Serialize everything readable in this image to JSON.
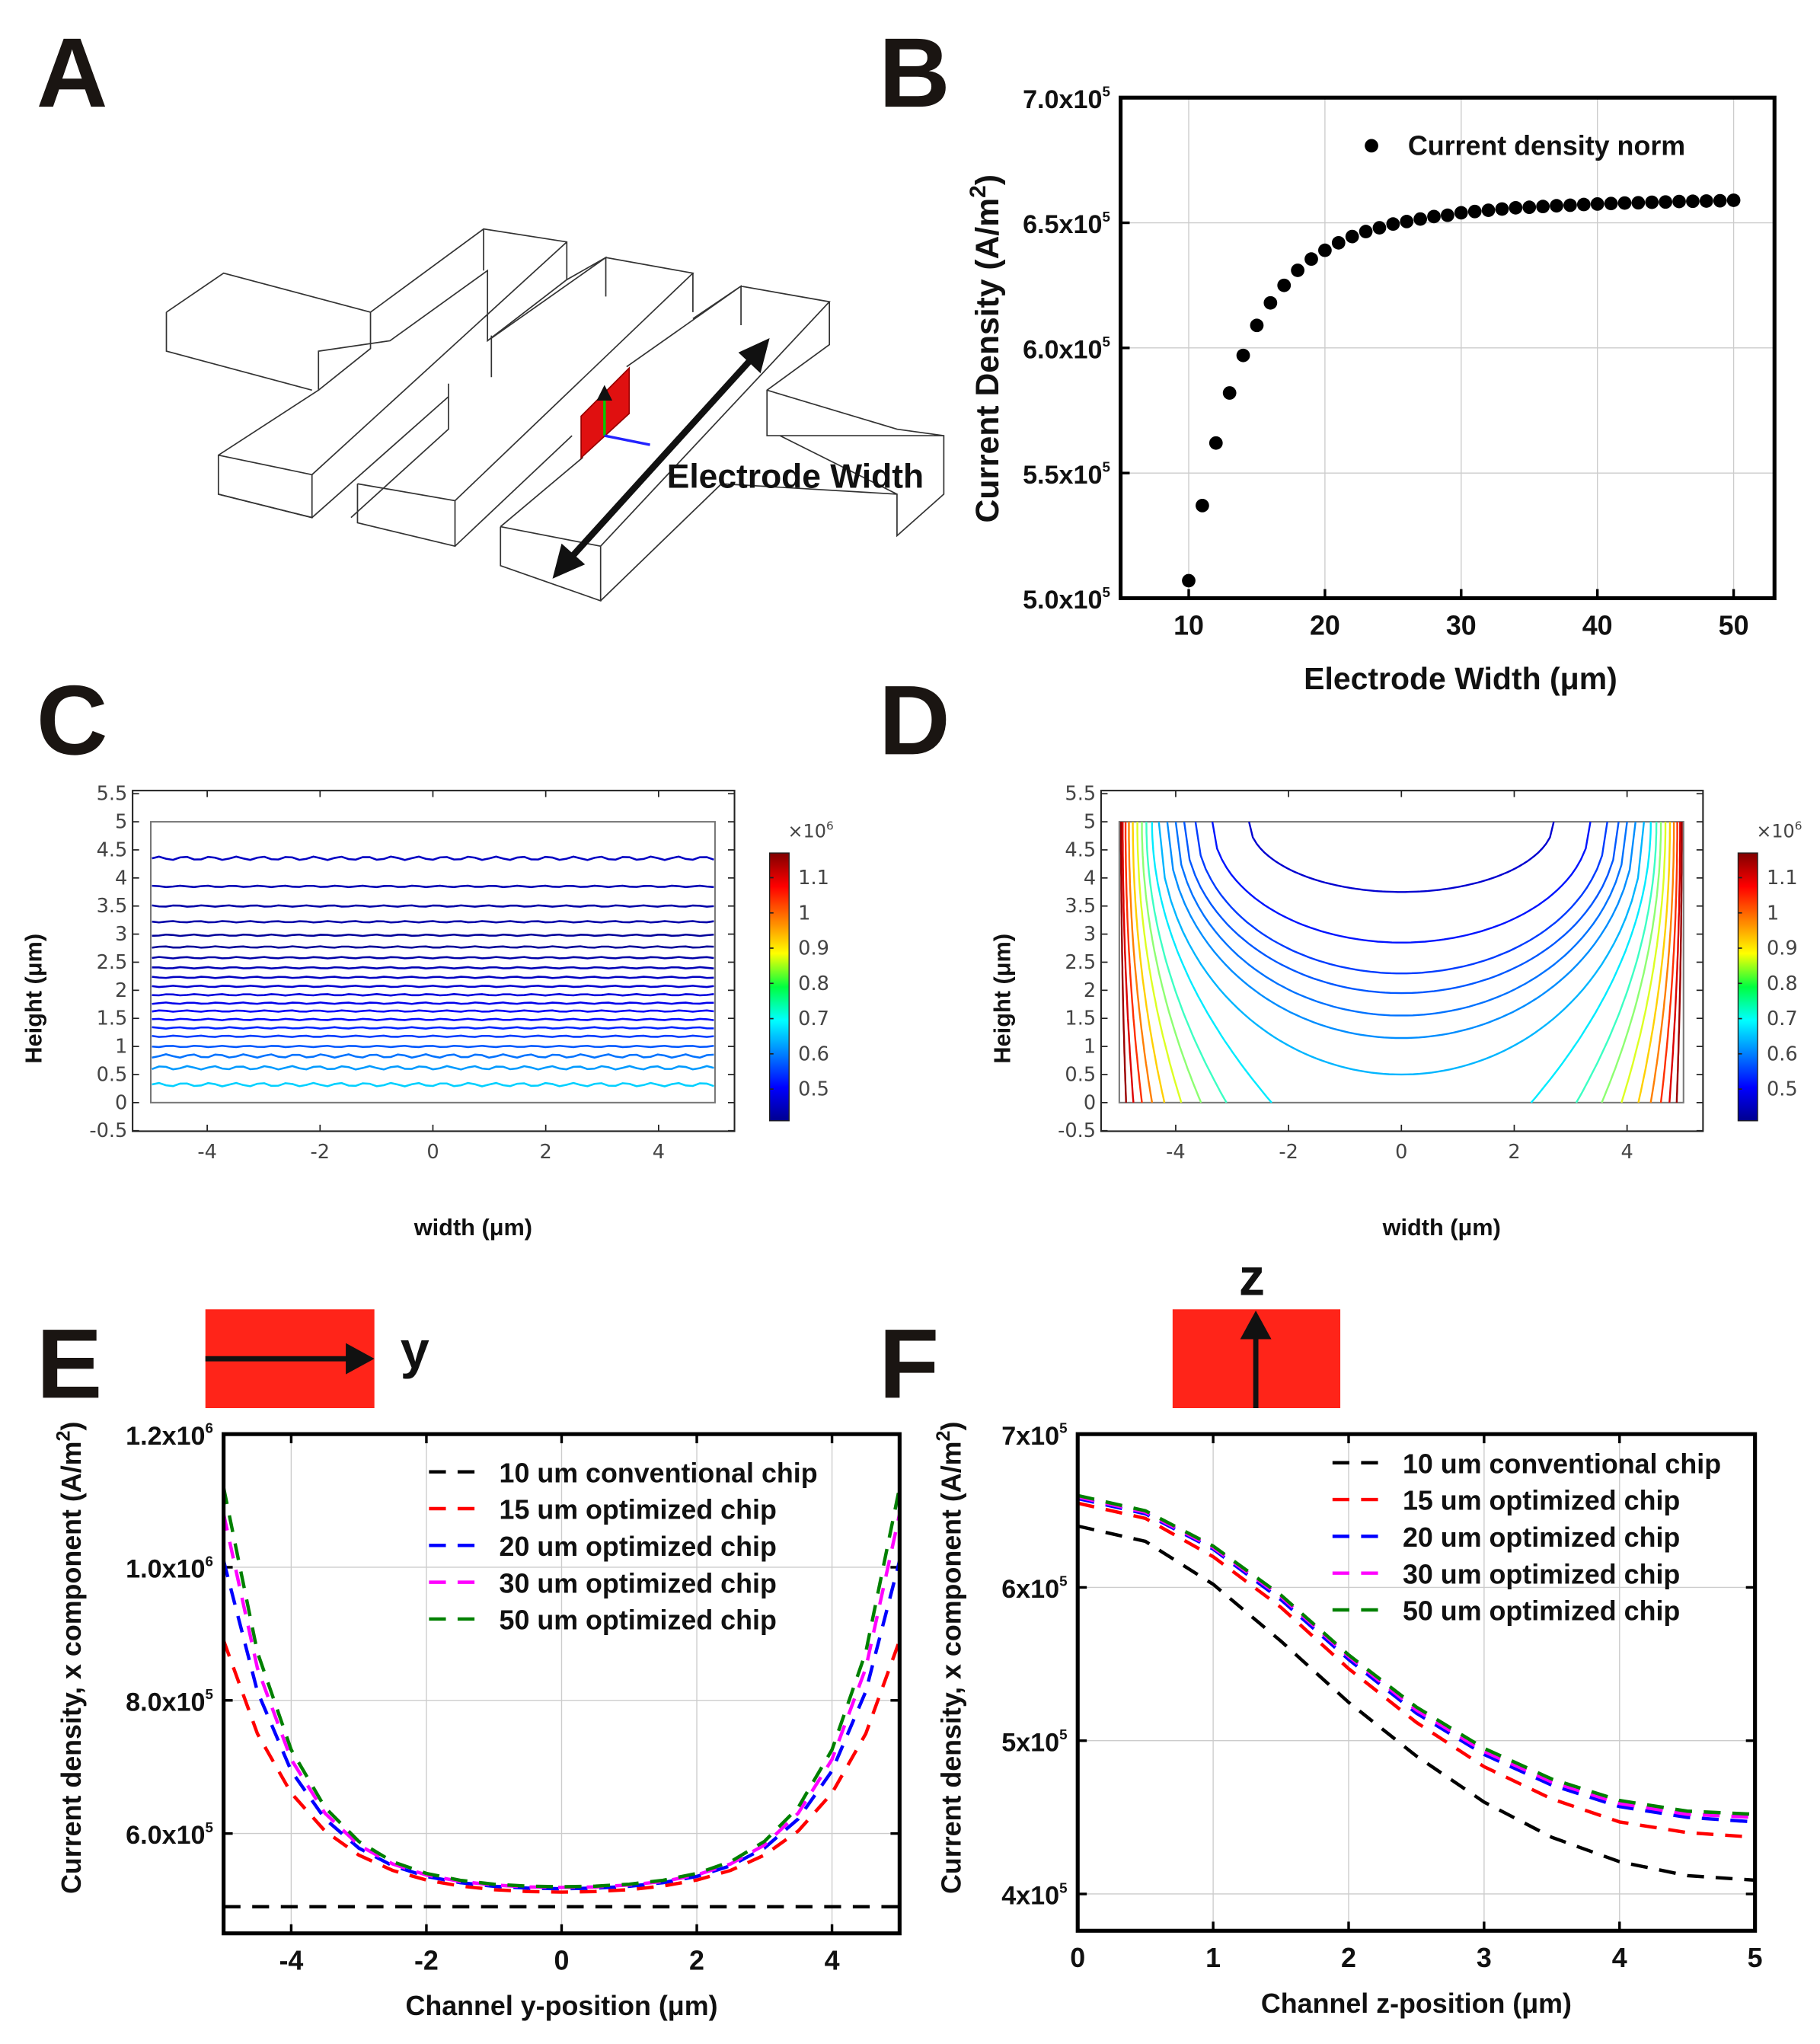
{
  "panels": {
    "A": {
      "letter": "A",
      "annotation": "Electrode Width"
    },
    "B": {
      "letter": "B"
    },
    "C": {
      "letter": "C"
    },
    "D": {
      "letter": "D"
    },
    "E": {
      "letter": "E",
      "axis_symbol": "y"
    },
    "F": {
      "letter": "F",
      "axis_symbol": "z"
    }
  },
  "colors": {
    "red_block": "#ff2419",
    "black": "#000000",
    "s10": "#000000",
    "s15": "#ff0000",
    "s20": "#0000ff",
    "s30": "#ff00ff",
    "s50": "#008000"
  },
  "chart_data": [
    {
      "id": "B",
      "type": "scatter",
      "title": "",
      "xlabel": "Electrode Width (μm)",
      "ylabel_pre": "Current Density (A/m",
      "ylabel_sup": "2",
      "ylabel_post": ")",
      "xlim": [
        5,
        53
      ],
      "ylim": [
        5.0,
        7.0
      ],
      "y_scale_factor": 100000,
      "xticks": [
        10,
        20,
        30,
        40,
        50
      ],
      "yticks": [
        {
          "v": 5.0,
          "base": "5.0x10",
          "exp": "5"
        },
        {
          "v": 5.5,
          "base": "5.5x10",
          "exp": "5"
        },
        {
          "v": 6.0,
          "base": "6.0x10",
          "exp": "5"
        },
        {
          "v": 6.5,
          "base": "6.5x10",
          "exp": "5"
        },
        {
          "v": 7.0,
          "base": "7.0x10",
          "exp": "5"
        }
      ],
      "grid": true,
      "legend_position": "top-right",
      "series": [
        {
          "name": "Current density norm",
          "x": [
            10,
            11,
            12,
            13,
            14,
            15,
            16,
            17,
            18,
            19,
            20,
            21,
            22,
            23,
            24,
            25,
            26,
            27,
            28,
            29,
            30,
            31,
            32,
            33,
            34,
            35,
            36,
            37,
            38,
            39,
            40,
            41,
            42,
            43,
            44,
            45,
            46,
            47,
            48,
            49,
            50
          ],
          "y": [
            5.07,
            5.37,
            5.62,
            5.82,
            5.97,
            6.09,
            6.18,
            6.25,
            6.31,
            6.355,
            6.39,
            6.42,
            6.445,
            6.465,
            6.48,
            6.495,
            6.505,
            6.515,
            6.525,
            6.53,
            6.54,
            6.545,
            6.55,
            6.555,
            6.56,
            6.562,
            6.565,
            6.568,
            6.57,
            6.573,
            6.575,
            6.577,
            6.579,
            6.58,
            6.582,
            6.583,
            6.585,
            6.586,
            6.587,
            6.588,
            6.59
          ]
        }
      ]
    },
    {
      "id": "C",
      "type": "contour",
      "xlabel": "width (μm)",
      "ylabel": "Height (μm)",
      "xlim": [
        -5.3,
        5.3
      ],
      "ylim": [
        -0.5,
        5.5
      ],
      "xticks": [
        "-4",
        "-2",
        "0",
        "2",
        "4"
      ],
      "xtick_values": [
        -4,
        -2,
        0,
        2,
        4
      ],
      "yticks": [
        "5.5",
        "5",
        "4.5",
        "4",
        "3.5",
        "3",
        "2.5",
        "2",
        "1.5",
        "1",
        "0.5",
        "0",
        "-0.5"
      ],
      "ytick_values": [
        5.5,
        5,
        4.5,
        4,
        3.5,
        3,
        2.5,
        2,
        1.5,
        1,
        0.5,
        0,
        -0.5
      ],
      "colorbar": {
        "exponent_label": "×10",
        "exponent": "6",
        "ticks": [
          "1.1",
          "1",
          "0.9",
          "0.8",
          "0.7",
          "0.6",
          "0.5"
        ],
        "tick_values": [
          1.1,
          1.0,
          0.9,
          0.8,
          0.7,
          0.6,
          0.5
        ],
        "range": [
          0.41,
          1.17
        ]
      },
      "contour_heights": [
        4.35,
        3.85,
        3.5,
        3.22,
        2.98,
        2.77,
        2.58,
        2.4,
        2.23,
        2.07,
        1.92,
        1.77,
        1.63,
        1.48,
        1.33,
        1.18,
        1.0,
        0.83,
        0.62,
        0.32
      ],
      "contour_values": [
        0.46,
        0.45,
        0.44,
        0.44,
        0.43,
        0.43,
        0.44,
        0.45,
        0.46,
        0.47,
        0.48,
        0.49,
        0.5,
        0.51,
        0.53,
        0.55,
        0.57,
        0.59,
        0.62,
        0.66
      ]
    },
    {
      "id": "D",
      "type": "contour",
      "xlabel": "width (μm)",
      "ylabel": "Height (μm)",
      "xlim": [
        -5.3,
        5.3
      ],
      "ylim": [
        -0.5,
        5.5
      ],
      "xticks": [
        "-4",
        "-2",
        "0",
        "2",
        "4"
      ],
      "xtick_values": [
        -4,
        -2,
        0,
        2,
        4
      ],
      "yticks": [
        "5.5",
        "5",
        "4.5",
        "4",
        "3.5",
        "3",
        "2.5",
        "2",
        "1.5",
        "1",
        "0.5",
        "0",
        "-0.5"
      ],
      "ytick_values": [
        5.5,
        5,
        4.5,
        4,
        3.5,
        3,
        2.5,
        2,
        1.5,
        1,
        0.5,
        0,
        -0.5
      ],
      "colorbar": {
        "exponent_label": "×10",
        "exponent": "6",
        "ticks": [
          "1.1",
          "1",
          "0.9",
          "0.8",
          "0.7",
          "0.6",
          "0.5"
        ],
        "tick_values": [
          1.1,
          1.0,
          0.9,
          0.8,
          0.7,
          0.6,
          0.5
        ],
        "range": [
          0.41,
          1.17
        ]
      },
      "center_contours": [
        {
          "z_min": 3.75,
          "x_end": 2.7,
          "value": 0.47
        },
        {
          "z_min": 2.85,
          "x_end": 3.35,
          "value": 0.52
        },
        {
          "z_min": 2.3,
          "x_end": 3.65,
          "value": 0.55
        },
        {
          "z_min": 1.95,
          "x_end": 3.85,
          "value": 0.57
        },
        {
          "z_min": 1.55,
          "x_end": 4.0,
          "value": 0.59
        },
        {
          "z_min": 1.15,
          "x_end": 4.15,
          "value": 0.61
        },
        {
          "z_min": 0.5,
          "x_end": 4.3,
          "value": 0.64
        }
      ],
      "edge_contours": [
        {
          "x_bottom": 2.3,
          "x_top": 4.42,
          "value": 0.68
        },
        {
          "x_bottom": 3.1,
          "x_top": 4.52,
          "value": 0.74
        },
        {
          "x_bottom": 3.55,
          "x_top": 4.6,
          "value": 0.8
        },
        {
          "x_bottom": 3.9,
          "x_top": 4.68,
          "value": 0.86
        },
        {
          "x_bottom": 4.2,
          "x_top": 4.76,
          "value": 0.92
        },
        {
          "x_bottom": 4.42,
          "x_top": 4.83,
          "value": 0.98
        },
        {
          "x_bottom": 4.6,
          "x_top": 4.89,
          "value": 1.04
        },
        {
          "x_bottom": 4.75,
          "x_top": 4.94,
          "value": 1.1
        },
        {
          "x_bottom": 4.88,
          "x_top": 4.97,
          "value": 1.15
        }
      ]
    },
    {
      "id": "E",
      "type": "line",
      "xlabel": "Channel y-position (μm)",
      "ylabel_pre": "Current density, x component (A/m",
      "ylabel_sup": "2",
      "ylabel_post": ")",
      "xlim": [
        -5,
        5
      ],
      "ylim": [
        4.5,
        12.0
      ],
      "y_scale_factor": 100000,
      "xticks": [
        -4,
        -2,
        0,
        2,
        4
      ],
      "yticks": [
        {
          "v": 6.0,
          "base": "6.0x10",
          "exp": "5"
        },
        {
          "v": 8.0,
          "base": "8.0x10",
          "exp": "5"
        },
        {
          "v": 10.0,
          "base": "1.0x10",
          "exp": "6"
        },
        {
          "v": 12.0,
          "base": "1.2x10",
          "exp": "6"
        }
      ],
      "grid": true,
      "legend_position": "top-right",
      "x": [
        -5,
        -4.5,
        -4,
        -3.5,
        -3,
        -2.5,
        -2,
        -1.5,
        -1,
        -0.5,
        0,
        0.5,
        1,
        1.5,
        2,
        2.5,
        3,
        3.5,
        4,
        4.5,
        5
      ],
      "series": [
        {
          "name": "10 um  conventional chip",
          "color_key": "s10",
          "values": [
            4.9,
            4.9,
            4.9,
            4.9,
            4.9,
            4.9,
            4.9,
            4.9,
            4.9,
            4.9,
            4.9,
            4.9,
            4.9,
            4.9,
            4.9,
            4.9,
            4.9,
            4.9,
            4.9,
            4.9,
            4.9
          ]
        },
        {
          "name": "15 um optimized chip",
          "color_key": "s15",
          "values": [
            8.9,
            7.5,
            6.607,
            6.038,
            5.676,
            5.446,
            5.301,
            5.211,
            5.157,
            5.129,
            5.12,
            5.129,
            5.157,
            5.211,
            5.301,
            5.446,
            5.676,
            6.038,
            6.607,
            7.5,
            8.9
          ]
        },
        {
          "name": "20 um optimized chip",
          "color_key": "s20",
          "values": [
            10.1,
            8.134,
            6.942,
            6.219,
            5.781,
            5.516,
            5.356,
            5.261,
            5.207,
            5.179,
            5.17,
            5.179,
            5.207,
            5.261,
            5.356,
            5.516,
            5.781,
            6.219,
            6.942,
            8.134,
            10.1
          ]
        },
        {
          "name": "30 um optimized chip",
          "color_key": "s30",
          "values": [
            10.8,
            8.485,
            7.114,
            6.304,
            5.826,
            5.542,
            5.377,
            5.28,
            5.226,
            5.198,
            5.19,
            5.198,
            5.226,
            5.28,
            5.377,
            5.542,
            5.826,
            6.304,
            7.114,
            8.485,
            10.8
          ]
        },
        {
          "name": "50 um optimized chip",
          "color_key": "s50",
          "values": [
            11.2,
            8.724,
            7.258,
            6.391,
            5.88,
            5.577,
            5.4,
            5.296,
            5.238,
            5.209,
            5.2,
            5.209,
            5.238,
            5.296,
            5.4,
            5.577,
            5.88,
            6.391,
            7.258,
            8.724,
            11.2
          ]
        }
      ]
    },
    {
      "id": "F",
      "type": "line",
      "xlabel": "Channel z-position (μm)",
      "ylabel_pre": "Current density, x component (A/m",
      "ylabel_sup": "2",
      "ylabel_post": ")",
      "xlim": [
        0,
        5
      ],
      "ylim": [
        3.76,
        7.0
      ],
      "y_scale_factor": 100000,
      "xticks": [
        0,
        1,
        2,
        3,
        4,
        5
      ],
      "yticks": [
        {
          "v": 4,
          "base": "4x10",
          "exp": "5"
        },
        {
          "v": 5,
          "base": "5x10",
          "exp": "5"
        },
        {
          "v": 6,
          "base": "6x10",
          "exp": "5"
        },
        {
          "v": 7,
          "base": "7x10",
          "exp": "5"
        }
      ],
      "grid": true,
      "legend_position": "top-right",
      "x": [
        0,
        0.5,
        1,
        1.5,
        2,
        2.5,
        3,
        3.5,
        4,
        4.5,
        5
      ],
      "series": [
        {
          "name": "10 um conventional chip",
          "color_key": "s10",
          "values": [
            6.4,
            6.3,
            6.02,
            5.65,
            5.25,
            4.9,
            4.6,
            4.37,
            4.21,
            4.12,
            4.09
          ]
        },
        {
          "name": "15 um optimized chip",
          "color_key": "s15",
          "values": [
            6.55,
            6.45,
            6.2,
            5.87,
            5.47,
            5.12,
            4.83,
            4.62,
            4.47,
            4.4,
            4.37
          ]
        },
        {
          "name": "20 um optimized chip",
          "color_key": "s20",
          "values": [
            6.58,
            6.48,
            6.25,
            5.92,
            5.53,
            5.18,
            4.91,
            4.71,
            4.57,
            4.5,
            4.47
          ]
        },
        {
          "name": "30 um optimized chip",
          "color_key": "s30",
          "values": [
            6.59,
            6.49,
            6.26,
            5.94,
            5.55,
            5.2,
            4.93,
            4.73,
            4.59,
            4.52,
            4.5
          ]
        },
        {
          "name": "50 um optimized chip",
          "color_key": "s50",
          "values": [
            6.6,
            6.5,
            6.27,
            5.95,
            5.56,
            5.22,
            4.95,
            4.75,
            4.61,
            4.54,
            4.52
          ]
        }
      ]
    }
  ]
}
